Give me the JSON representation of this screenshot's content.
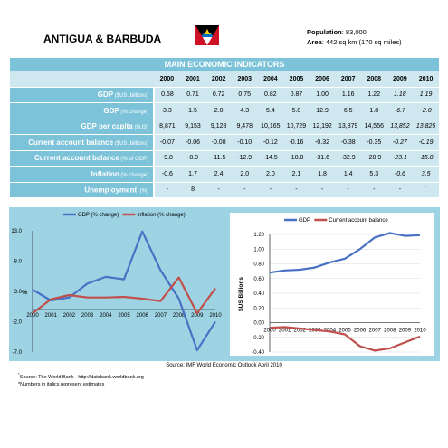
{
  "country": "ANTIGUA & BARBUDA",
  "population_label": "Population",
  "population_value": ": 83,000",
  "area_label": "Area",
  "area_value": ": 442 sq km (170 sq miles)",
  "table": {
    "title": "MAIN ECONOMIC INDICATORS",
    "years": [
      "2000",
      "2001",
      "2002",
      "2003",
      "2004",
      "2005",
      "2006",
      "2007",
      "2008",
      "2009",
      "2010"
    ],
    "rows": [
      {
        "label": "GDP",
        "unit": " ($US, billions)",
        "values": [
          "0.68",
          "0.71",
          "0.72",
          "0.75",
          "0.82",
          "0.87",
          "1.00",
          "1.16",
          "1.22",
          "1.18",
          "1.19"
        ]
      },
      {
        "label": "GDP",
        "unit": " (% change)",
        "values": [
          "3.3",
          "1.5",
          "2.0",
          "4.3",
          "5.4",
          "5.0",
          "12.9",
          "6.5",
          "1.8",
          "-6.7",
          "-2.0"
        ]
      },
      {
        "label": "GDP per capita",
        "unit": " ($US)",
        "values": [
          "8,871",
          "9,153",
          "9,128",
          "9,478",
          "10,165",
          "10,729",
          "12,192",
          "13,879",
          "14,556",
          "13,852",
          "13,825"
        ]
      },
      {
        "label": "Current account balance",
        "unit": " ($US, billions)",
        "values": [
          "-0.07",
          "-0.06",
          "-0.08",
          "-0.10",
          "-0.12",
          "-0.16",
          "-0.32",
          "-0.38",
          "-0.35",
          "-0.27",
          "-0.19"
        ]
      },
      {
        "label": "Current account balance",
        "unit": " (% of GDP)",
        "values": [
          "-9.8",
          "-8.0",
          "-11.5",
          "-12.9",
          "-14.5",
          "-18.8",
          "-31.6",
          "-32.9",
          "-28.9",
          "-23.1",
          "-15.8"
        ]
      },
      {
        "label": "Inflation",
        "unit": " (% change)",
        "values": [
          "-0.6",
          "1.7",
          "2.4",
          "2.0",
          "2.0",
          "2.1",
          "1.8",
          "1.4",
          "5.3",
          "-0.6",
          "3.5"
        ]
      },
      {
        "label": "Unemployment",
        "sup": "*",
        "unit": " (%)",
        "values": [
          "-",
          "8",
          "-",
          "-",
          "-",
          "-",
          "-",
          "-",
          "-",
          "-",
          "`"
        ]
      }
    ]
  },
  "chart_data": [
    {
      "type": "line",
      "x": [
        "2000",
        "2001",
        "2002",
        "2003",
        "2004",
        "2005",
        "2006",
        "2007",
        "2008",
        "2009",
        "2010"
      ],
      "series": [
        {
          "name": "GDP (% change)",
          "color": "#4a72c4",
          "values": [
            3.3,
            1.5,
            2.0,
            4.3,
            5.4,
            5.0,
            12.9,
            6.5,
            1.8,
            -6.7,
            -2.0
          ]
        },
        {
          "name": "Inflation (% change)",
          "color": "#c0504d",
          "values": [
            -0.6,
            1.7,
            2.4,
            2.0,
            2.0,
            2.1,
            1.8,
            1.4,
            5.3,
            -0.6,
            3.5
          ]
        }
      ],
      "ylabel": "%",
      "yticks": [
        "13.0",
        "8.0",
        "3.0",
        "-2.0",
        "-7.0"
      ],
      "ylim": [
        -7,
        13
      ],
      "legend": "top"
    },
    {
      "type": "line",
      "x": [
        "2000",
        "2001",
        "2002",
        "2003",
        "2004",
        "2005",
        "2006",
        "2007",
        "2008",
        "2009",
        "2010"
      ],
      "series": [
        {
          "name": "GDP",
          "color": "#4a72c4",
          "values": [
            0.68,
            0.71,
            0.72,
            0.75,
            0.82,
            0.87,
            1.0,
            1.16,
            1.22,
            1.18,
            1.19
          ]
        },
        {
          "name": "Current account balance",
          "color": "#c0504d",
          "values": [
            -0.07,
            -0.06,
            -0.08,
            -0.1,
            -0.12,
            -0.16,
            -0.32,
            -0.38,
            -0.35,
            -0.27,
            -0.19
          ]
        }
      ],
      "ylabel": "$US Billions",
      "yticks": [
        "1.20",
        "1.00",
        "0.80",
        "0.60",
        "0.40",
        "0.20",
        "0.00",
        "-0.20",
        "-0.40"
      ],
      "ylim": [
        -0.4,
        1.2
      ],
      "legend": "top"
    }
  ],
  "source": "Source: IMF World Economic Outlook April 2010",
  "note1_mark": "*",
  "note1": "Source: The World Bank - http://databank.worldbank.org",
  "note2": "*Numbers in italics represent estimates"
}
